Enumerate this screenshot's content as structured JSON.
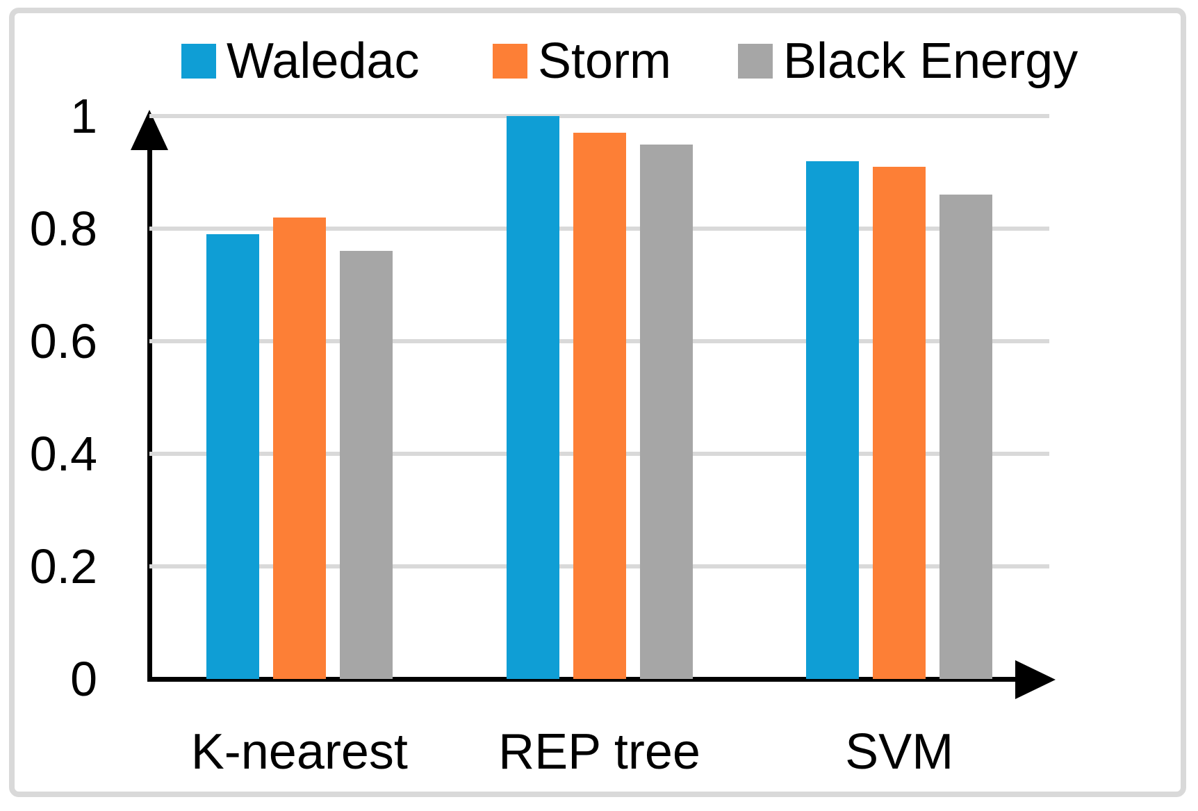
{
  "colors": {
    "background": "#FFFFFF",
    "frame_border": "#D9D9D9",
    "gridline": "#D9D9D9",
    "axis": "#000000",
    "text": "#000000"
  },
  "chart_data": {
    "type": "bar",
    "title": "",
    "xlabel": "",
    "ylabel": "",
    "categories": [
      "K-nearest",
      "REP tree",
      "SVM"
    ],
    "series": [
      {
        "name": "Waledac",
        "color": "#0F9ED5",
        "values": [
          0.79,
          1.0,
          0.92
        ]
      },
      {
        "name": "Storm",
        "color": "#FD7F36",
        "values": [
          0.82,
          0.97,
          0.91
        ]
      },
      {
        "name": "Black Energy",
        "color": "#A6A6A6",
        "values": [
          0.76,
          0.95,
          0.86
        ]
      }
    ],
    "ylim": [
      0,
      1
    ],
    "ytick_values": [
      0,
      0.2,
      0.4,
      0.6,
      0.8,
      1
    ],
    "ytick_labels": [
      "0",
      "0.2",
      "0.4",
      "0.6",
      "0.8",
      "1"
    ],
    "grid": true,
    "legend_position": "top"
  }
}
